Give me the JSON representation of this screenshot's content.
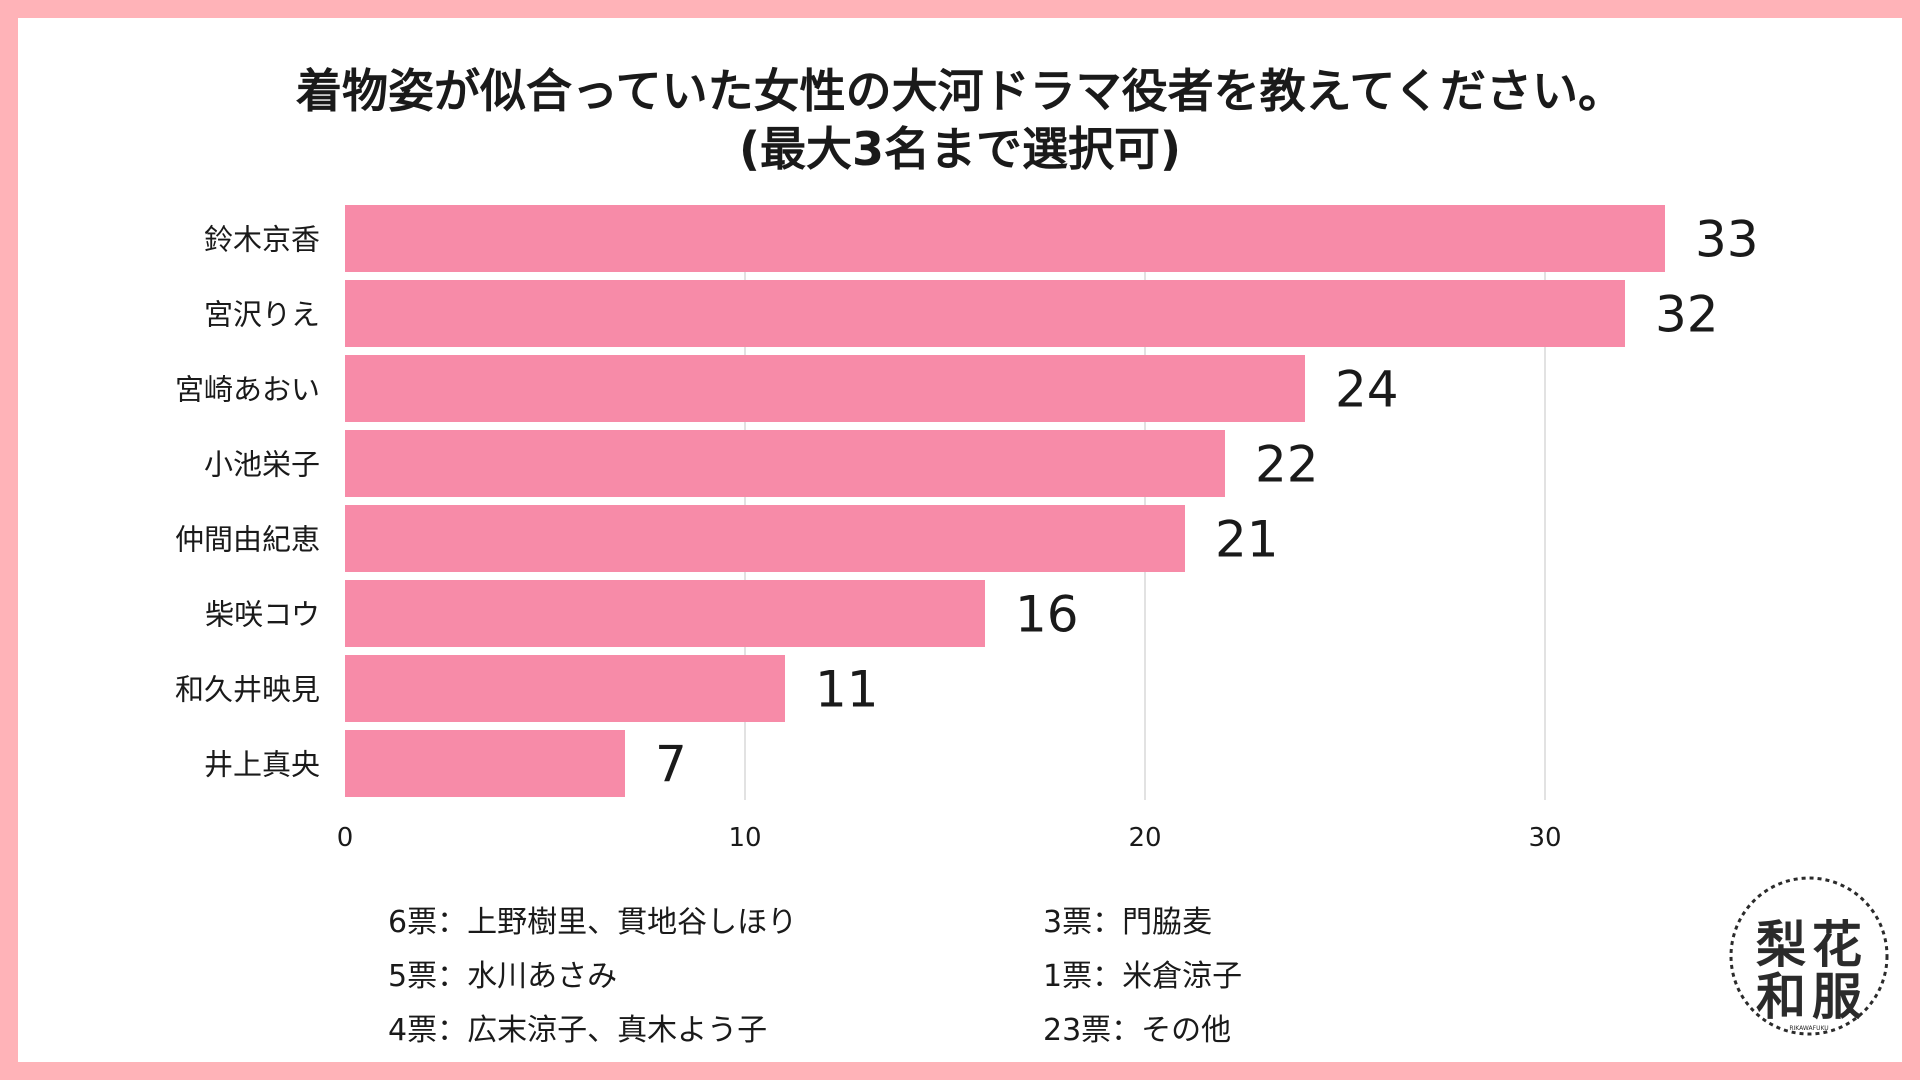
{
  "title": {
    "line1": "着物姿が似合っていた女性の大河ドラマ役者を教えてください。",
    "line2": "(最大3名まで選択可)"
  },
  "chart_data": {
    "type": "bar",
    "orientation": "horizontal",
    "categories": [
      "鈴木京香",
      "宮沢りえ",
      "宮崎あおい",
      "小池栄子",
      "仲間由紀恵",
      "柴咲コウ",
      "和久井映見",
      "井上真央"
    ],
    "values": [
      33,
      32,
      24,
      22,
      21,
      16,
      11,
      7
    ],
    "xticks": [
      0,
      10,
      20,
      30
    ],
    "xlim": [
      0,
      37
    ],
    "grid": true,
    "bar_color": "#f78ba8",
    "gridline_color": "#d9d9d9"
  },
  "notes": {
    "left": [
      "6票：上野樹里、貫地谷しほり",
      "5票：水川あさみ",
      "4票：広末涼子、真木よう子"
    ],
    "right": [
      "3票：門脇麦",
      "1票：米倉涼子",
      "23票：その他"
    ]
  },
  "logo": {
    "chars": [
      "梨",
      "花",
      "和",
      "服"
    ],
    "subtext": "RIKAWAFUKU"
  }
}
